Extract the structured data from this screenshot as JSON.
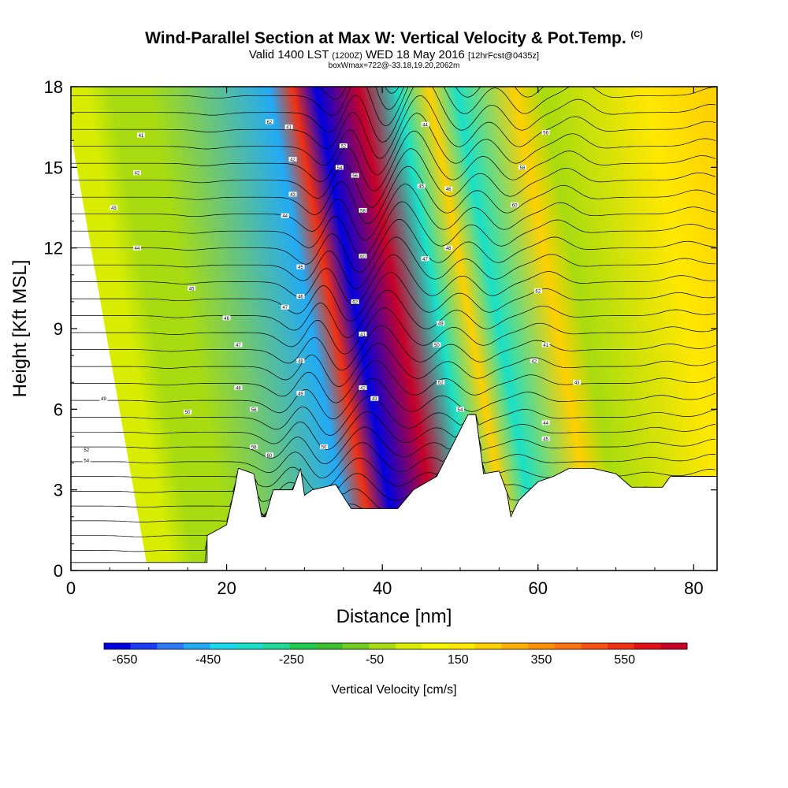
{
  "header": {
    "title": "Wind-Parallel Section at Max W: Vertical Velocity & Pot.Temp.",
    "title_mark": "(C)",
    "valid_prefix": "Valid 1400 LST",
    "valid_utc": "(1200Z)",
    "valid_date": "WED 18 May 2016",
    "forecast": "[12hrFcst@0435z]",
    "box_info": "boxWmax=722@-33.18,19.20,2062m"
  },
  "chart_data": {
    "type": "heatmap",
    "xlabel": "Distance [nm]",
    "ylabel": "Height [Kft MSL]",
    "xlim": [
      0,
      83
    ],
    "ylim": [
      0,
      18
    ],
    "x_ticks": [
      "0",
      "20",
      "40",
      "60",
      "80"
    ],
    "y_ticks": [
      "0",
      "3",
      "6",
      "9",
      "12",
      "15",
      "18"
    ],
    "colorbar": {
      "label": "Vertical Velocity [cm/s]",
      "tick_labels": [
        "-650",
        "-450",
        "-250",
        "-50",
        "150",
        "350",
        "550"
      ],
      "range": [
        -700,
        700
      ],
      "colors": [
        "#0000e0",
        "#1a3cf5",
        "#2f7af8",
        "#22aaf5",
        "#18d8ee",
        "#18e0c8",
        "#20d898",
        "#20cc50",
        "#3cc030",
        "#70cc20",
        "#a8dc10",
        "#d8ec00",
        "#f4f400",
        "#ffe800",
        "#ffd000",
        "#ffb000",
        "#ff9000",
        "#ff7010",
        "#f85010",
        "#f03010",
        "#e01018",
        "#c80028"
      ]
    },
    "velocity_bands": [
      {
        "x": 8,
        "w": -50,
        "note": "broad weak sink"
      },
      {
        "x": 23.5,
        "w": -450
      },
      {
        "x": 26.5,
        "w": 550
      },
      {
        "x": 29.5,
        "w": -650
      },
      {
        "x": 35,
        "w": 650
      },
      {
        "x": 40,
        "w": -350
      },
      {
        "x": 44,
        "w": 200
      },
      {
        "x": 47.5,
        "w": -350
      },
      {
        "x": 55,
        "w": 250
      },
      {
        "x": 58.5,
        "w": -50
      },
      {
        "x": 72,
        "w": 150
      },
      {
        "x": 80,
        "w": 250
      }
    ],
    "theta_contour_labels": [
      "41",
      "42",
      "43",
      "44",
      "45",
      "46",
      "47",
      "48",
      "49",
      "50",
      "52",
      "54",
      "56",
      "58",
      "60",
      "62"
    ],
    "terrain": [
      {
        "x": 0,
        "h": 0.3
      },
      {
        "x": 17.5,
        "h": 0.3
      },
      {
        "x": 17.5,
        "h": 1.3
      },
      {
        "x": 20,
        "h": 1.7
      },
      {
        "x": 21,
        "h": 3.0
      },
      {
        "x": 21.5,
        "h": 3.8
      },
      {
        "x": 23.5,
        "h": 3.6
      },
      {
        "x": 24.5,
        "h": 2.0
      },
      {
        "x": 25,
        "h": 2.0
      },
      {
        "x": 26,
        "h": 3.0
      },
      {
        "x": 28.5,
        "h": 3.0
      },
      {
        "x": 29.5,
        "h": 3.8
      },
      {
        "x": 30,
        "h": 2.8
      },
      {
        "x": 31,
        "h": 3.0
      },
      {
        "x": 34,
        "h": 3.2
      },
      {
        "x": 36,
        "h": 2.3
      },
      {
        "x": 42,
        "h": 2.3
      },
      {
        "x": 44,
        "h": 3.0
      },
      {
        "x": 47,
        "h": 3.5
      },
      {
        "x": 51,
        "h": 5.8
      },
      {
        "x": 52,
        "h": 5.8
      },
      {
        "x": 53,
        "h": 3.6
      },
      {
        "x": 55,
        "h": 3.7
      },
      {
        "x": 56,
        "h": 2.9
      },
      {
        "x": 56.5,
        "h": 2.0
      },
      {
        "x": 57.5,
        "h": 2.6
      },
      {
        "x": 60,
        "h": 3.3
      },
      {
        "x": 62,
        "h": 3.5
      },
      {
        "x": 64,
        "h": 3.8
      },
      {
        "x": 67,
        "h": 3.8
      },
      {
        "x": 70,
        "h": 3.6
      },
      {
        "x": 72,
        "h": 3.1
      },
      {
        "x": 76,
        "h": 3.1
      },
      {
        "x": 77,
        "h": 3.5
      },
      {
        "x": 83,
        "h": 3.5
      }
    ]
  }
}
